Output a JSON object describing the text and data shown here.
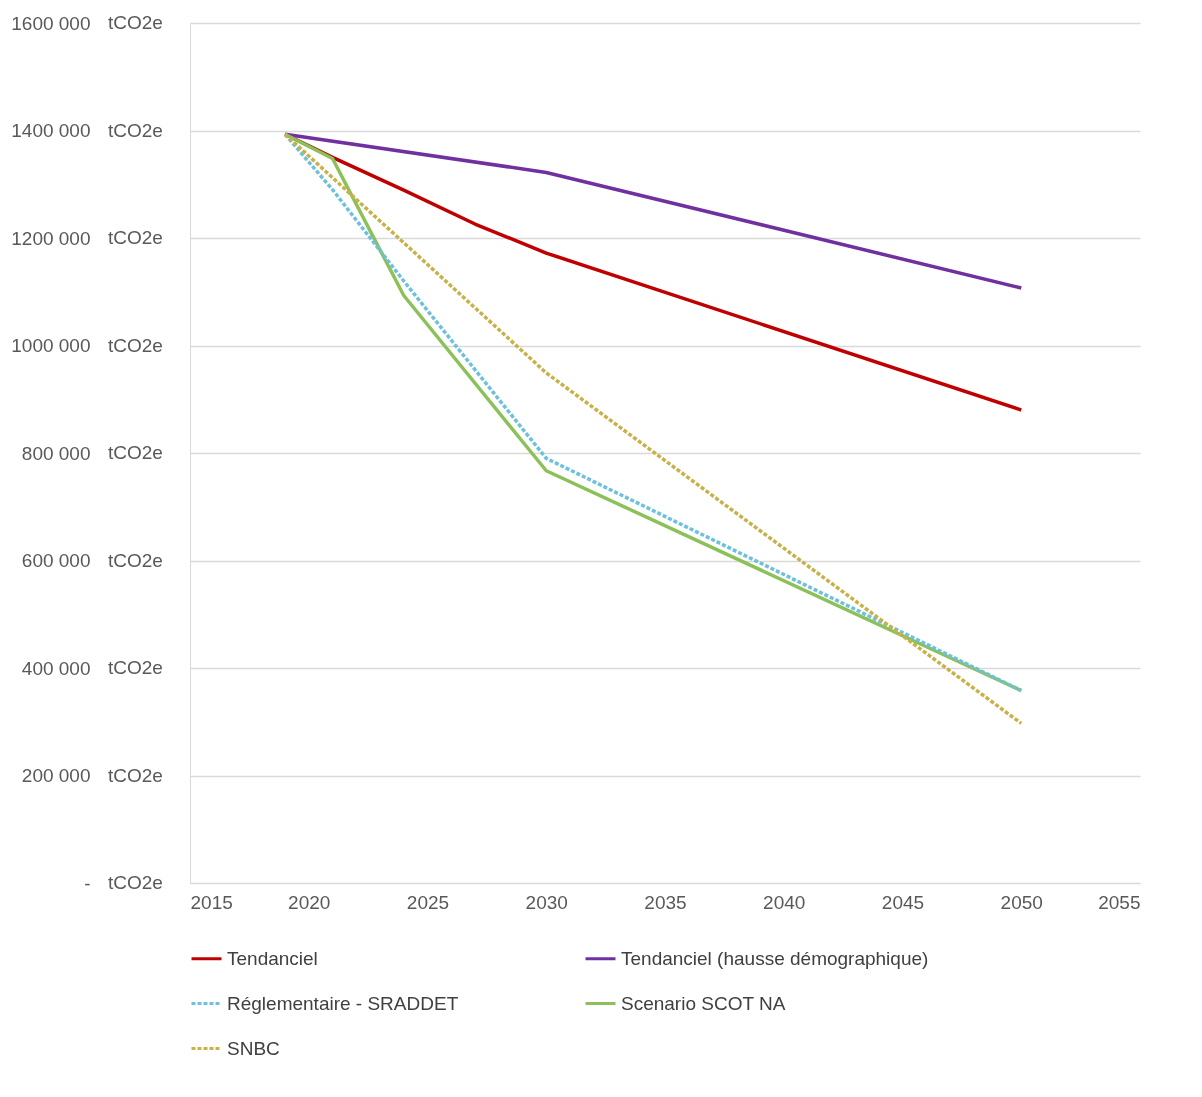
{
  "chart_data": {
    "type": "line",
    "xlim": [
      2015,
      2055
    ],
    "xticks": [
      2015,
      2020,
      2025,
      2030,
      2035,
      2040,
      2045,
      2050,
      2055
    ],
    "ylabel": "tCO2e",
    "ylim": [
      0,
      1600000
    ],
    "yticks": [
      {
        "value": 0,
        "label": "-"
      },
      {
        "value": 200000,
        "label": "200 000"
      },
      {
        "value": 400000,
        "label": "400 000"
      },
      {
        "value": 600000,
        "label": "600 000"
      },
      {
        "value": 800000,
        "label": "800 000"
      },
      {
        "value": 1000000,
        "label": "1000 000"
      },
      {
        "value": 1200000,
        "label": "1200 000"
      },
      {
        "value": 1400000,
        "label": "1400 000"
      },
      {
        "value": 1600000,
        "label": "1600 000"
      }
    ],
    "grid": "y",
    "legend": "bottom",
    "marker": "none",
    "series": [
      {
        "name": "Tendanciel",
        "color": "#c00000",
        "line_style": "solid",
        "x": [
          2019,
          2021,
          2024,
          2027,
          2030,
          2050
        ],
        "values": [
          1393000,
          1350000,
          1289000,
          1226000,
          1172000,
          880000
        ]
      },
      {
        "name": "Tendanciel (hausse démographique)",
        "color": "#7030a0",
        "line_style": "solid",
        "x": [
          2019,
          2030,
          2050
        ],
        "values": [
          1393000,
          1322000,
          1107000
        ]
      },
      {
        "name": "Réglementaire - SRADDET",
        "color": "#6ec1dc",
        "line_style": "dashed",
        "x": [
          2019,
          2021,
          2024,
          2030,
          2050
        ],
        "values": [
          1393000,
          1290000,
          1120000,
          790000,
          358000
        ]
      },
      {
        "name": "Scenario SCOT NA",
        "color": "#8bc158",
        "line_style": "solid",
        "x": [
          2019,
          2021,
          2024,
          2030,
          2050
        ],
        "values": [
          1393000,
          1348000,
          1093000,
          767000,
          358000
        ]
      },
      {
        "name": "SNBC",
        "color": "#c9b14a",
        "line_style": "dashed",
        "x": [
          2019,
          2030,
          2050
        ],
        "values": [
          1393000,
          949000,
          297000
        ]
      }
    ]
  }
}
